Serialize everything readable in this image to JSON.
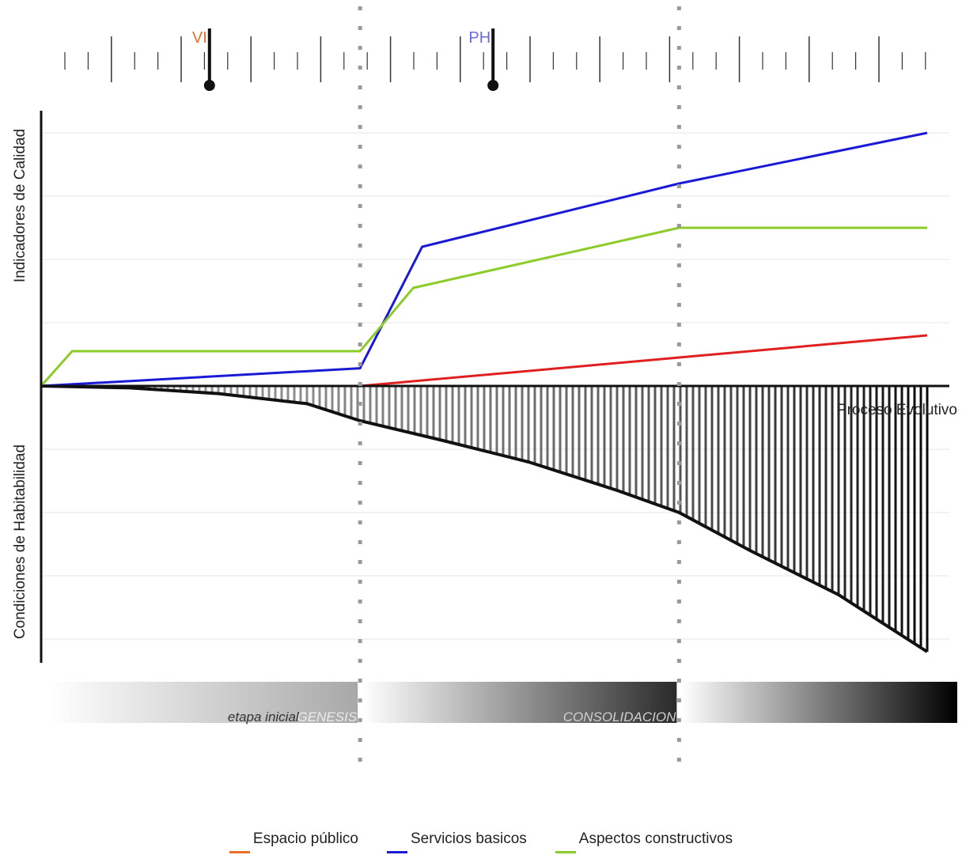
{
  "chart_data": {
    "type": "line",
    "title": "",
    "xlabel": "Proceso Evolutivo",
    "ylabel_top": "Indicadores de Calidad",
    "ylabel_bottom": "Condiciones de Habitabilidad",
    "xlim": [
      0,
      100
    ],
    "ylim": [
      -4.2,
      4
    ],
    "grid": true,
    "legend_position": "bottom-center",
    "stage_boundaries": [
      36,
      72
    ],
    "stages": [
      {
        "label": "etapa inicial",
        "label2": "GENESIS",
        "x0": 0,
        "x1": 36
      },
      {
        "label": "",
        "label2": "CONSOLIDACION",
        "x0": 36,
        "x1": 72
      },
      {
        "label": "",
        "label2": "",
        "x0": 72,
        "x1": 100
      }
    ],
    "timeline_markers": [
      {
        "label": "VI",
        "x": 19,
        "color": "#e8702a"
      },
      {
        "label": "PH",
        "x": 51,
        "color": "#6b6bdc"
      }
    ],
    "series": [
      {
        "name": "Espacio público",
        "color": "#e02020",
        "x": [
          0,
          36,
          72,
          100
        ],
        "y": [
          0,
          0,
          0.45,
          0.8
        ]
      },
      {
        "name": "Servicios basicos",
        "color": "#1a1ad6",
        "x": [
          0,
          36,
          43,
          72,
          100
        ],
        "y": [
          0,
          0.28,
          2.2,
          3.2,
          4.0
        ]
      },
      {
        "name": "Aspectos constructivos",
        "color": "#8ccc2a",
        "x": [
          0,
          3.5,
          36,
          42,
          72,
          100
        ],
        "y": [
          0,
          0.55,
          0.55,
          1.55,
          2.5,
          2.5
        ]
      }
    ],
    "habitability_curve": {
      "x": [
        0,
        10,
        20,
        30,
        36,
        45,
        55,
        65,
        72,
        80,
        90,
        100
      ],
      "y": [
        0,
        -0.03,
        -0.12,
        -0.28,
        -0.55,
        -0.85,
        -1.2,
        -1.65,
        -2.0,
        -2.6,
        -3.3,
        -4.2
      ]
    }
  },
  "legend": [
    {
      "label": "Espacio público",
      "color": "#e8702a"
    },
    {
      "label": "Servicios basicos",
      "color": "#1a1ad6"
    },
    {
      "label": "Aspectos constructivos",
      "color": "#8ccc2a"
    }
  ]
}
